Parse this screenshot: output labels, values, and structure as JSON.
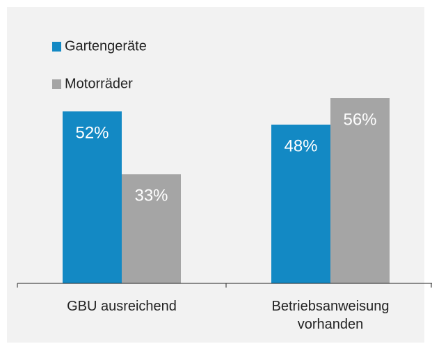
{
  "chart_data": {
    "type": "bar",
    "categories": [
      "GBU ausreichend",
      "Betriebsanweisung vorhanden"
    ],
    "series": [
      {
        "name": "Gartengeräte",
        "color": "#1389c4",
        "values": [
          52,
          48
        ],
        "value_labels": [
          "52%",
          "48%"
        ]
      },
      {
        "name": "Motorräder",
        "color": "#a5a5a5",
        "values": [
          33,
          56
        ],
        "value_labels": [
          "33%",
          "56%"
        ]
      }
    ],
    "ylim": [
      0,
      60
    ]
  }
}
